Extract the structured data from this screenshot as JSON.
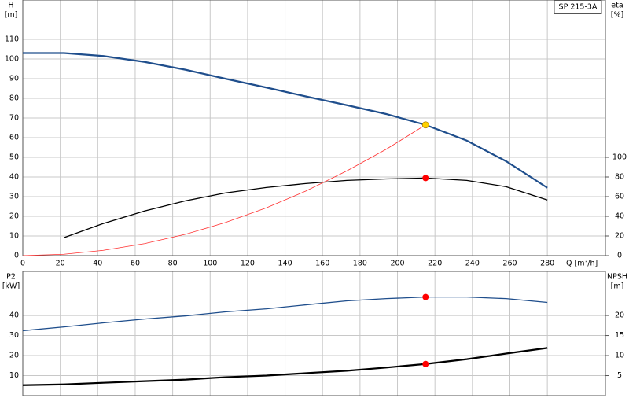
{
  "chart_data": [
    {
      "type": "line",
      "title": "SP 215-3A",
      "ylabel": [
        "H",
        "[m]"
      ],
      "y2label": [
        "eta",
        "[%]"
      ],
      "xlabel": "Q [m³/h]",
      "xlim": [
        0,
        311
      ],
      "ylim": [
        0,
        130
      ],
      "y2lim": [
        0,
        260
      ],
      "xticks": [
        0,
        20,
        40,
        60,
        80,
        100,
        120,
        140,
        160,
        180,
        200,
        220,
        240,
        260,
        280
      ],
      "yticks": [
        0,
        10,
        20,
        30,
        40,
        50,
        60,
        70,
        80,
        90,
        100,
        110
      ],
      "y2ticks": [
        0,
        20,
        40,
        60,
        80,
        100
      ],
      "xtick_labels": true,
      "grid": true,
      "series": [
        {
          "kind": "line",
          "color": "#1f4e8c",
          "width": 2.2,
          "x": [
            0,
            22,
            43,
            65,
            87,
            108,
            130,
            151,
            173,
            194,
            215,
            237,
            258,
            280
          ],
          "values": [
            103,
            103,
            101.5,
            98.5,
            94.5,
            90,
            85.5,
            81,
            76.5,
            72,
            66.5,
            58.5,
            48,
            34.5
          ]
        },
        {
          "kind": "line",
          "color": "#000000",
          "width": 1.3,
          "axis": "y2",
          "x": [
            22,
            43,
            65,
            87,
            108,
            130,
            151,
            173,
            194,
            215,
            237,
            258,
            280
          ],
          "values": [
            18.3,
            32.7,
            45.4,
            55.8,
            63.7,
            69.3,
            73.3,
            76.5,
            78,
            78.9,
            76.5,
            70.1,
            56.6
          ]
        },
        {
          "kind": "line",
          "color": "#ff3030",
          "width": 0.8,
          "x": [
            0,
            22,
            43,
            65,
            87,
            108,
            130,
            151,
            173,
            194,
            215
          ],
          "values": [
            0,
            0.7,
            2.7,
            6.1,
            10.9,
            16.8,
            24.3,
            32.8,
            43.1,
            54.1,
            66.5
          ]
        },
        {
          "kind": "point",
          "color": "#ffd200",
          "x": [
            215
          ],
          "values": [
            66.5
          ]
        },
        {
          "kind": "point",
          "color": "#ff0000",
          "axis": "y2",
          "x": [
            215
          ],
          "values": [
            78.9
          ]
        }
      ]
    },
    {
      "type": "line",
      "ylabel": [
        "P2",
        "[kW]"
      ],
      "y2label": [
        "NPSH",
        "[m]"
      ],
      "xlim": [
        0,
        311
      ],
      "ylim": [
        0,
        62
      ],
      "y2lim": [
        0,
        31
      ],
      "xticks": [
        0,
        20,
        40,
        60,
        80,
        100,
        120,
        140,
        160,
        180,
        200,
        220,
        240,
        260,
        280
      ],
      "yticks": [
        10,
        20,
        30,
        40
      ],
      "y2ticks": [
        5,
        10,
        15,
        20
      ],
      "xtick_labels": false,
      "grid": true,
      "series": [
        {
          "kind": "line",
          "color": "#1f4e8c",
          "width": 1.3,
          "x": [
            0,
            22,
            43,
            65,
            87,
            108,
            130,
            151,
            173,
            194,
            215,
            237,
            258,
            280
          ],
          "values": [
            32.4,
            34.3,
            36.3,
            38.2,
            39.8,
            41.8,
            43.3,
            45.3,
            47.3,
            48.4,
            49.2,
            49.2,
            48.4,
            46.5
          ]
        },
        {
          "kind": "line",
          "color": "#000000",
          "width": 2.2,
          "axis": "y2",
          "x": [
            0,
            22,
            43,
            65,
            87,
            108,
            130,
            151,
            173,
            194,
            215,
            237,
            258,
            280
          ],
          "values": [
            2.6,
            2.8,
            3.2,
            3.6,
            4.0,
            4.6,
            5.0,
            5.6,
            6.2,
            7.0,
            7.9,
            9.1,
            10.5,
            11.9
          ]
        },
        {
          "kind": "point",
          "color": "#ff0000",
          "x": [
            215
          ],
          "values": [
            49.2
          ]
        },
        {
          "kind": "point",
          "color": "#ff0000",
          "axis": "y2",
          "x": [
            215
          ],
          "values": [
            7.9
          ]
        }
      ]
    }
  ]
}
